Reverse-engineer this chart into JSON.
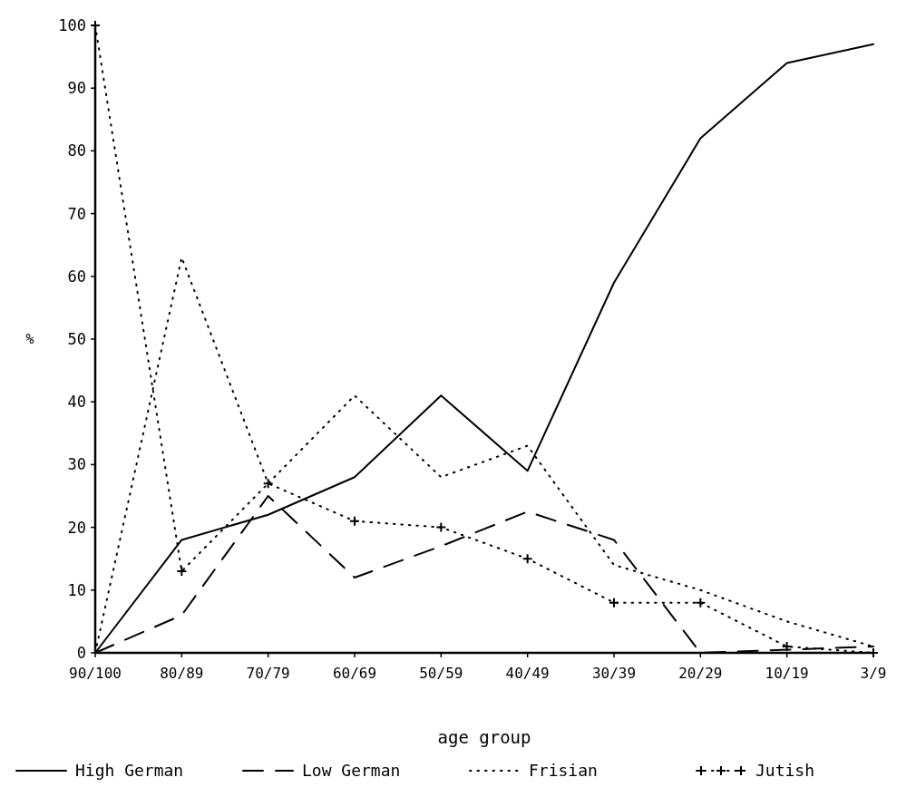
{
  "chart_data": {
    "type": "line",
    "xlabel": "age group",
    "ylabel": "%",
    "categories": [
      "90/100",
      "80/89",
      "70/79",
      "60/69",
      "50/59",
      "40/49",
      "30/39",
      "20/29",
      "10/19",
      "3/9"
    ],
    "ylim": [
      0,
      100
    ],
    "yticks": [
      0,
      10,
      20,
      30,
      40,
      50,
      60,
      70,
      80,
      90,
      100
    ],
    "grid": false,
    "legend": "bottom",
    "series": [
      {
        "name": "High German",
        "color": "#000000",
        "line_style": "solid",
        "marker": "none",
        "values": [
          0,
          18,
          22,
          28,
          41,
          29,
          59,
          82,
          94,
          97
        ]
      },
      {
        "name": "Low German",
        "color": "#000000",
        "line_style": "dashed",
        "marker": "none",
        "values": [
          0,
          6,
          25,
          12,
          17,
          22.5,
          18,
          0,
          0.5,
          1
        ]
      },
      {
        "name": "Frisian",
        "color": "#000000",
        "line_style": "dotted",
        "marker": "none",
        "values": [
          0,
          63,
          27,
          41,
          28,
          33,
          14,
          10,
          5,
          1
        ]
      },
      {
        "name": "Jutish",
        "color": "#000000",
        "line_style": "dotted",
        "marker": "cross",
        "values": [
          100,
          13,
          27,
          21,
          20,
          15,
          8,
          8,
          1,
          0
        ]
      }
    ]
  }
}
